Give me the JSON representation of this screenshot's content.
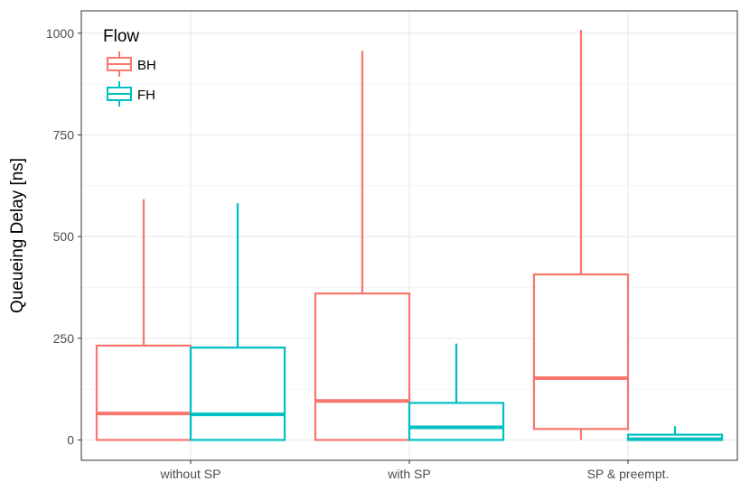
{
  "chart_data": {
    "type": "boxplot",
    "title": "",
    "xlabel": "",
    "ylabel": "Queueing Delay [ns]",
    "ylim": [
      -50,
      1055
    ],
    "yticks": [
      0,
      250,
      500,
      750,
      1000
    ],
    "ytick_labels": [
      "0",
      "250",
      "500",
      "750",
      "1000"
    ],
    "categories": [
      "without SP",
      "with SP",
      "SP & preempt."
    ],
    "legend": {
      "title": "Flow",
      "position": "top-left"
    },
    "series": [
      {
        "name": "BH",
        "color": "#F8766D",
        "boxes": [
          {
            "min": 0,
            "q1": 0,
            "median": 65,
            "q3": 232,
            "max": 592
          },
          {
            "min": 0,
            "q1": 0,
            "median": 96,
            "q3": 360,
            "max": 957
          },
          {
            "min": 0,
            "q1": 27,
            "median": 152,
            "q3": 407,
            "max": 1008
          }
        ]
      },
      {
        "name": "FH",
        "color": "#00BFC4",
        "boxes": [
          {
            "min": 0,
            "q1": 0,
            "median": 63,
            "q3": 227,
            "max": 582
          },
          {
            "min": 0,
            "q1": 0,
            "median": 31,
            "q3": 91,
            "max": 237
          },
          {
            "min": 0,
            "q1": 0,
            "median": 2,
            "q3": 13,
            "max": 34
          }
        ]
      }
    ]
  }
}
